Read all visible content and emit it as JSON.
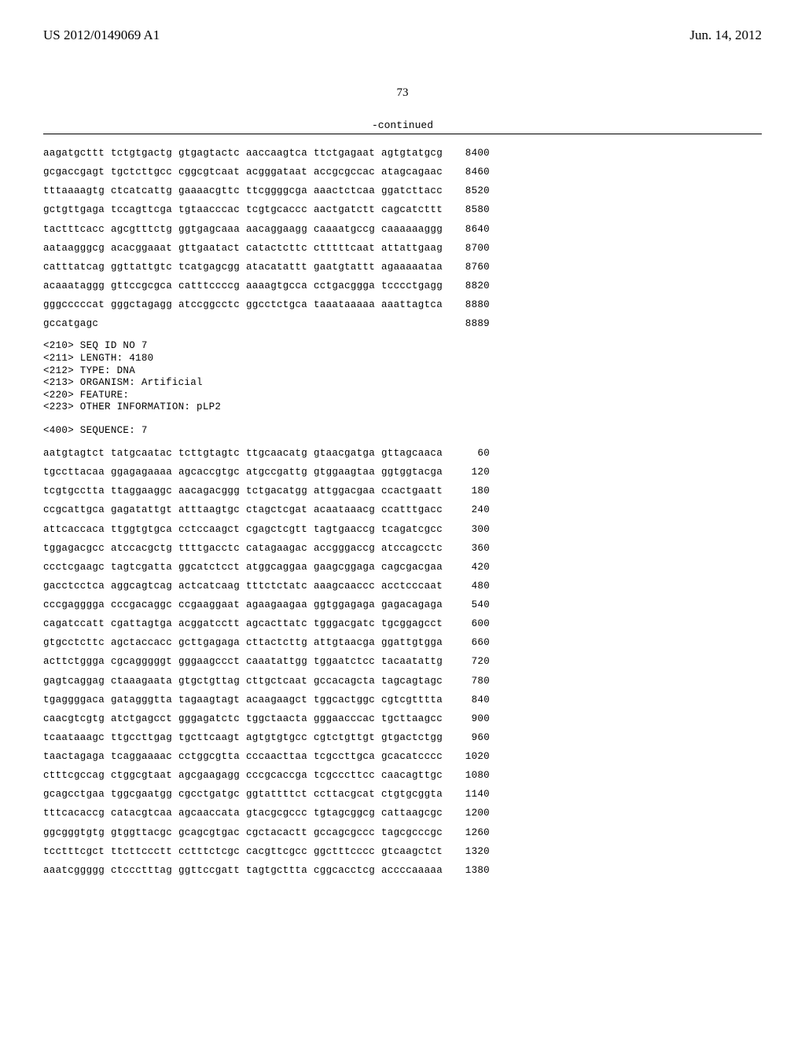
{
  "header": {
    "pub_number": "US 2012/0149069 A1",
    "pub_date": "Jun. 14, 2012",
    "page_number": "73",
    "continued_label": "-continued"
  },
  "sequence_block_1": {
    "rows": [
      {
        "groups": [
          "aagatgcttt",
          "tctgtgactg",
          "gtgagtactc",
          "aaccaagtca",
          "ttctgagaat",
          "agtgtatgcg"
        ],
        "pos": "8400"
      },
      {
        "groups": [
          "gcgaccgagt",
          "tgctcttgcc",
          "cggcgtcaat",
          "acgggataat",
          "accgcgccac",
          "atagcagaac"
        ],
        "pos": "8460"
      },
      {
        "groups": [
          "tttaaaagtg",
          "ctcatcattg",
          "gaaaacgttc",
          "ttcggggcga",
          "aaactctcaa",
          "ggatcttacc"
        ],
        "pos": "8520"
      },
      {
        "groups": [
          "gctgttgaga",
          "tccagttcga",
          "tgtaacccac",
          "tcgtgcaccc",
          "aactgatctt",
          "cagcatcttt"
        ],
        "pos": "8580"
      },
      {
        "groups": [
          "tactttcacc",
          "agcgtttctg",
          "ggtgagcaaa",
          "aacaggaagg",
          "caaaatgccg",
          "caaaaaaggg"
        ],
        "pos": "8640"
      },
      {
        "groups": [
          "aataagggcg",
          "acacggaaat",
          "gttgaatact",
          "catactcttc",
          "ctttttcaat",
          "attattgaag"
        ],
        "pos": "8700"
      },
      {
        "groups": [
          "catttatcag",
          "ggttattgtc",
          "tcatgagcgg",
          "atacatattt",
          "gaatgtattt",
          "agaaaaataa"
        ],
        "pos": "8760"
      },
      {
        "groups": [
          "acaaataggg",
          "gttccgcgca",
          "catttccccg",
          "aaaagtgcca",
          "cctgacggga",
          "tcccctgagg"
        ],
        "pos": "8820"
      },
      {
        "groups": [
          "gggcccccat",
          "gggctagagg",
          "atccggcctc",
          "ggcctctgca",
          "taaataaaaa",
          "aaattagtca"
        ],
        "pos": "8880"
      },
      {
        "groups": [
          "gccatgagc",
          "",
          "",
          "",
          "",
          ""
        ],
        "pos": "8889"
      }
    ]
  },
  "meta": {
    "seq_id": "<210> SEQ ID NO 7",
    "length": "<211> LENGTH: 4180",
    "type": "<212> TYPE: DNA",
    "organism": "<213> ORGANISM: Artificial",
    "feature": "<220> FEATURE:",
    "other": "<223> OTHER INFORMATION: pLP2"
  },
  "sequence_header": "<400> SEQUENCE: 7",
  "sequence_block_2": {
    "rows": [
      {
        "groups": [
          "aatgtagtct",
          "tatgcaatac",
          "tcttgtagtc",
          "ttgcaacatg",
          "gtaacgatga",
          "gttagcaaca"
        ],
        "pos": "60"
      },
      {
        "groups": [
          "tgccttacaa",
          "ggagagaaaa",
          "agcaccgtgc",
          "atgccgattg",
          "gtggaagtaa",
          "ggtggtacga"
        ],
        "pos": "120"
      },
      {
        "groups": [
          "tcgtgcctta",
          "ttaggaaggc",
          "aacagacggg",
          "tctgacatgg",
          "attggacgaa",
          "ccactgaatt"
        ],
        "pos": "180"
      },
      {
        "groups": [
          "ccgcattgca",
          "gagatattgt",
          "atttaagtgc",
          "ctagctcgat",
          "acaataaacg",
          "ccatttgacc"
        ],
        "pos": "240"
      },
      {
        "groups": [
          "attcaccaca",
          "ttggtgtgca",
          "cctccaagct",
          "cgagctcgtt",
          "tagtgaaccg",
          "tcagatcgcc"
        ],
        "pos": "300"
      },
      {
        "groups": [
          "tggagacgcc",
          "atccacgctg",
          "ttttgacctc",
          "catagaagac",
          "accgggaccg",
          "atccagcctc"
        ],
        "pos": "360"
      },
      {
        "groups": [
          "ccctcgaagc",
          "tagtcgatta",
          "ggcatctcct",
          "atggcaggaa",
          "gaagcggaga",
          "cagcgacgaa"
        ],
        "pos": "420"
      },
      {
        "groups": [
          "gacctcctca",
          "aggcagtcag",
          "actcatcaag",
          "tttctctatc",
          "aaagcaaccc",
          "acctcccaat"
        ],
        "pos": "480"
      },
      {
        "groups": [
          "cccgagggga",
          "cccgacaggc",
          "ccgaaggaat",
          "agaagaagaa",
          "ggtggagaga",
          "gagacagaga"
        ],
        "pos": "540"
      },
      {
        "groups": [
          "cagatccatt",
          "cgattagtga",
          "acggatcctt",
          "agcacttatc",
          "tgggacgatc",
          "tgcggagcct"
        ],
        "pos": "600"
      },
      {
        "groups": [
          "gtgcctcttc",
          "agctaccacc",
          "gcttgagaga",
          "cttactcttg",
          "attgtaacga",
          "ggattgtgga"
        ],
        "pos": "660"
      },
      {
        "groups": [
          "acttctggga",
          "cgcagggggt",
          "gggaagccct",
          "caaatattgg",
          "tggaatctcc",
          "tacaatattg"
        ],
        "pos": "720"
      },
      {
        "groups": [
          "gagtcaggag",
          "ctaaagaata",
          "gtgctgttag",
          "cttgctcaat",
          "gccacagcta",
          "tagcagtagc"
        ],
        "pos": "780"
      },
      {
        "groups": [
          "tgaggggaca",
          "gatagggtta",
          "tagaagtagt",
          "acaagaagct",
          "tggcactggc",
          "cgtcgtttta"
        ],
        "pos": "840"
      },
      {
        "groups": [
          "caacgtcgtg",
          "atctgagcct",
          "gggagatctc",
          "tggctaacta",
          "gggaacccac",
          "tgcttaagcc"
        ],
        "pos": "900"
      },
      {
        "groups": [
          "tcaataaagc",
          "ttgccttgag",
          "tgcttcaagt",
          "agtgtgtgcc",
          "cgtctgttgt",
          "gtgactctgg"
        ],
        "pos": "960"
      },
      {
        "groups": [
          "taactagaga",
          "tcaggaaaac",
          "cctggcgtta",
          "cccaacttaa",
          "tcgccttgca",
          "gcacatcccc"
        ],
        "pos": "1020"
      },
      {
        "groups": [
          "ctttcgccag",
          "ctggcgtaat",
          "agcgaagagg",
          "cccgcaccga",
          "tcgcccttcc",
          "caacagttgc"
        ],
        "pos": "1080"
      },
      {
        "groups": [
          "gcagcctgaa",
          "tggcgaatgg",
          "cgcctgatgc",
          "ggtattttct",
          "ccttacgcat",
          "ctgtgcggta"
        ],
        "pos": "1140"
      },
      {
        "groups": [
          "tttcacaccg",
          "catacgtcaa",
          "agcaaccata",
          "gtacgcgccc",
          "tgtagcggcg",
          "cattaagcgc"
        ],
        "pos": "1200"
      },
      {
        "groups": [
          "ggcgggtgtg",
          "gtggttacgc",
          "gcagcgtgac",
          "cgctacactt",
          "gccagcgccc",
          "tagcgcccgc"
        ],
        "pos": "1260"
      },
      {
        "groups": [
          "tcctttcgct",
          "ttcttccctt",
          "cctttctcgc",
          "cacgttcgcc",
          "ggctttcccc",
          "gtcaagctct"
        ],
        "pos": "1320"
      },
      {
        "groups": [
          "aaatcggggg",
          "ctccctttag",
          "ggttccgatt",
          "tagtgcttta",
          "cggcacctcg",
          "accccaaaaa"
        ],
        "pos": "1380"
      }
    ]
  }
}
